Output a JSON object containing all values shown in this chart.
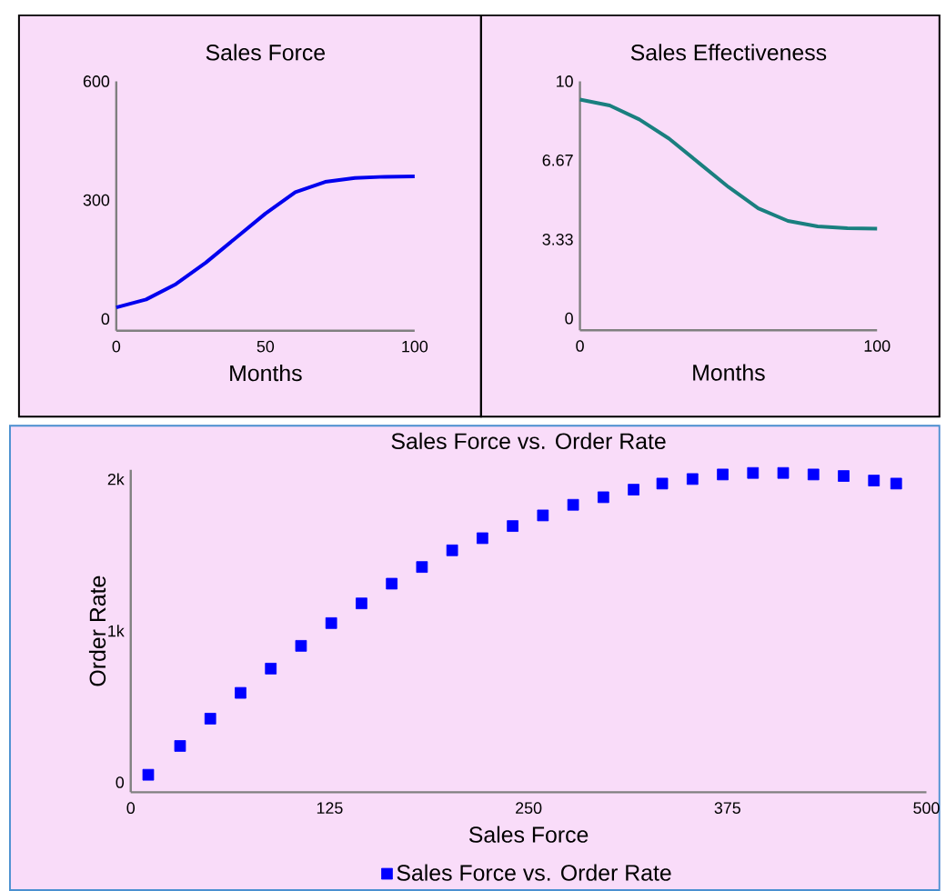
{
  "chart_data": [
    {
      "type": "line",
      "title": "Sales Force",
      "xlabel": "Months",
      "x": [
        0,
        10,
        20,
        30,
        40,
        50,
        60,
        70,
        80,
        90,
        100
      ],
      "series": [
        {
          "color": "#0000ee",
          "values": [
            29,
            49,
            88,
            142,
            204,
            266,
            320,
            346,
            356,
            359,
            360
          ]
        }
      ],
      "xlim": [
        0,
        100
      ],
      "ylim": [
        -30,
        600
      ],
      "xticks": [
        0,
        50,
        100
      ],
      "yticks": [
        0,
        300,
        600
      ]
    },
    {
      "type": "line",
      "title": "Sales Effectiveness",
      "xlabel": "Months",
      "x": [
        0,
        10,
        20,
        30,
        40,
        50,
        60,
        70,
        80,
        90,
        100
      ],
      "series": [
        {
          "color": "#1a7f7f",
          "values": [
            9.23,
            8.98,
            8.39,
            7.58,
            6.56,
            5.54,
            4.64,
            4.11,
            3.88,
            3.8,
            3.78
          ]
        }
      ],
      "xlim": [
        0,
        100
      ],
      "ylim": [
        -0.5,
        10
      ],
      "xticks": [
        0,
        100
      ],
      "yticks": [
        0,
        3.33,
        6.67,
        10
      ]
    },
    {
      "type": "scatter",
      "title": "Sales Force vs. Order Rate",
      "xlabel": "Sales Force",
      "ylabel": "Order Rate",
      "marker": "square",
      "legend": "bottom",
      "series": [
        {
          "name": "Sales Force vs. Order Rate",
          "color": "#0000ff",
          "x": [
            11,
            31,
            50,
            69,
            88,
            107,
            126,
            145,
            164,
            183,
            202,
            221,
            240,
            259,
            278,
            297,
            316,
            334,
            353,
            372,
            391,
            410,
            429,
            448,
            467,
            481
          ],
          "values": [
            50,
            240,
            420,
            590,
            750,
            900,
            1050,
            1180,
            1310,
            1420,
            1530,
            1610,
            1690,
            1760,
            1830,
            1880,
            1930,
            1970,
            2000,
            2030,
            2040,
            2040,
            2030,
            2020,
            1990,
            1970
          ]
        }
      ],
      "xlim": [
        0,
        500
      ],
      "ylim": [
        -65,
        2060
      ],
      "xticks": [
        0,
        125,
        250,
        375,
        500
      ],
      "yticks": [
        0,
        {
          "value": 1000,
          "label": "1k"
        },
        {
          "value": 2000,
          "label": "2k"
        }
      ]
    }
  ]
}
